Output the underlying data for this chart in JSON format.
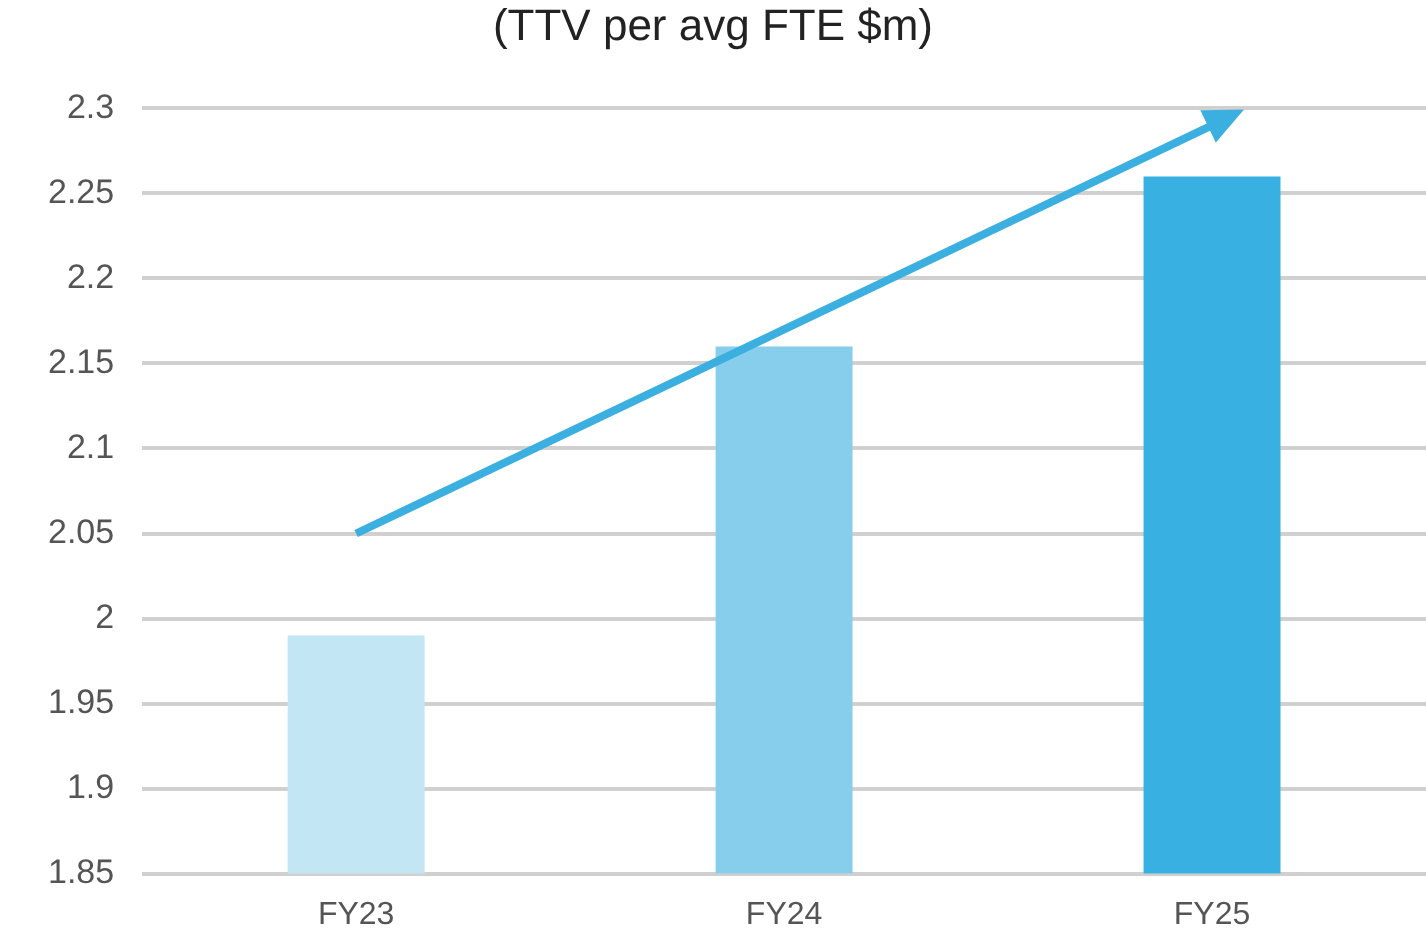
{
  "chart_data": {
    "type": "bar",
    "title": "(TTV per avg FTE $m)",
    "categories": [
      "FY23",
      "FY24",
      "FY25"
    ],
    "series": [
      {
        "values": [
          1.99,
          2.16,
          2.26
        ],
        "colors": [
          "#c3e6f5",
          "#87ceed",
          "#38b0e2"
        ]
      },
      {
        "type": "line",
        "color": "#3bb0e0",
        "values": [
          2.05,
          2.17,
          2.29
        ]
      }
    ],
    "ylim": [
      1.85,
      2.3
    ],
    "yticks": [
      1.85,
      1.9,
      1.95,
      2,
      2.05,
      2.1,
      2.15,
      2.2,
      2.25,
      2.3
    ],
    "grid": "y",
    "legend": false,
    "marker": "none"
  }
}
